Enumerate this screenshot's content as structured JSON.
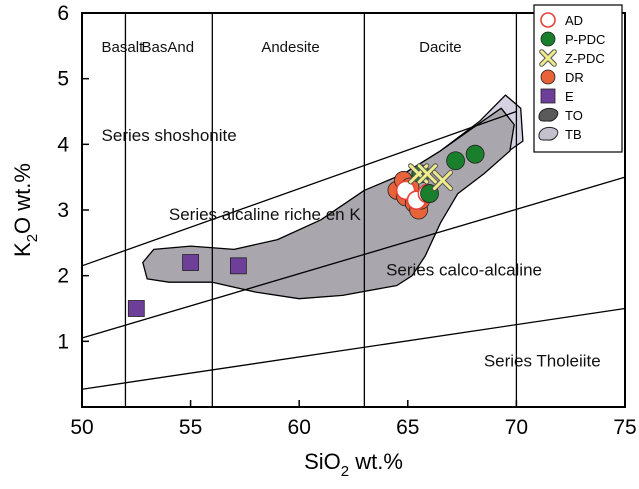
{
  "chart_data": {
    "type": "scatter",
    "xlabel": {
      "main": "SiO",
      "sub": "2",
      "tail": " wt.%"
    },
    "ylabel": {
      "main": "K",
      "sub": "2",
      "tail": "O wt.%"
    },
    "xlim": [
      50,
      75
    ],
    "ylim": [
      0,
      6
    ],
    "xticks": [
      50,
      55,
      60,
      65,
      70,
      75
    ],
    "yticks": [
      1,
      2,
      3,
      4,
      5,
      6
    ],
    "grid": false,
    "legend_position": "top-right",
    "vertical_boundaries": [
      52,
      56,
      63,
      70
    ],
    "rock_type_labels": [
      {
        "text": "Basalt",
        "x": 50.9
      },
      {
        "text": "BasAnd",
        "x": 53.95
      },
      {
        "text": "Andesite",
        "x": 59.6
      },
      {
        "text": "Dacite",
        "x": 66.5
      }
    ],
    "series_boundaries": [
      {
        "name": "upper",
        "points": [
          [
            50,
            2.15
          ],
          [
            70,
            4.5
          ]
        ]
      },
      {
        "name": "middle",
        "points": [
          [
            50,
            1.05
          ],
          [
            75,
            3.5
          ]
        ]
      },
      {
        "name": "lower",
        "points": [
          [
            50,
            0.27
          ],
          [
            75,
            1.5
          ]
        ]
      }
    ],
    "field_labels": [
      {
        "text": "Series shoshonite",
        "x": 50.9,
        "y": 4.05,
        "size": 17
      },
      {
        "text": "Series alcaline riche en K",
        "x": 54.0,
        "y": 2.85,
        "size": 17
      },
      {
        "text": "Series calco-alcaline",
        "x": 64.0,
        "y": 2.0,
        "size": 17
      },
      {
        "text": "Series Tholeiite",
        "x": 68.5,
        "y": 0.62,
        "size": 17
      }
    ],
    "regions": [
      {
        "name": "TB",
        "fill": "#d7d2e2",
        "points": [
          [
            63.2,
            3.1
          ],
          [
            64.8,
            3.55
          ],
          [
            66.5,
            3.9
          ],
          [
            68.3,
            4.35
          ],
          [
            69.5,
            4.75
          ],
          [
            70.2,
            4.55
          ],
          [
            70.3,
            4.05
          ],
          [
            69.0,
            3.75
          ],
          [
            67.5,
            3.35
          ],
          [
            65.8,
            3.05
          ],
          [
            64.2,
            2.75
          ],
          [
            63.2,
            2.8
          ]
        ]
      },
      {
        "name": "TO",
        "fill": "#a9a6ad",
        "points": [
          [
            52.8,
            2.2
          ],
          [
            53.3,
            2.4
          ],
          [
            55.0,
            2.45
          ],
          [
            57.0,
            2.4
          ],
          [
            59.0,
            2.55
          ],
          [
            61.0,
            2.85
          ],
          [
            63.0,
            3.3
          ],
          [
            64.8,
            3.55
          ],
          [
            66.5,
            3.9
          ],
          [
            68.0,
            4.25
          ],
          [
            69.3,
            4.55
          ],
          [
            69.9,
            4.3
          ],
          [
            69.7,
            3.9
          ],
          [
            68.5,
            3.55
          ],
          [
            67.3,
            3.25
          ],
          [
            66.5,
            2.8
          ],
          [
            65.8,
            2.3
          ],
          [
            65.2,
            2.0
          ],
          [
            64.5,
            1.85
          ],
          [
            62.0,
            1.7
          ],
          [
            60.0,
            1.65
          ],
          [
            58.0,
            1.75
          ],
          [
            56.0,
            1.9
          ],
          [
            54.0,
            1.9
          ],
          [
            53.0,
            1.95
          ]
        ]
      }
    ],
    "series": [
      {
        "name": "AD",
        "marker": "open-circle",
        "color": "#e8413a",
        "points": [
          [
            64.9,
            3.3
          ],
          [
            65.4,
            3.15
          ],
          [
            65.9,
            3.25
          ]
        ]
      },
      {
        "name": "P-PDC",
        "marker": "circle",
        "color": "#1a7f2c",
        "points": [
          [
            65.6,
            3.55
          ],
          [
            66.0,
            3.25
          ],
          [
            67.2,
            3.75
          ],
          [
            68.1,
            3.85
          ]
        ]
      },
      {
        "name": "Z-PDC",
        "marker": "x",
        "color": "#f0ec8c",
        "points": [
          [
            65.5,
            3.55
          ],
          [
            65.9,
            3.55
          ],
          [
            66.6,
            3.45
          ]
        ]
      },
      {
        "name": "DR",
        "marker": "circle",
        "color": "#e8623a",
        "points": [
          [
            64.5,
            3.3
          ],
          [
            64.8,
            3.45
          ],
          [
            64.9,
            3.2
          ],
          [
            65.1,
            3.35
          ],
          [
            65.3,
            3.1
          ],
          [
            65.5,
            3.0
          ],
          [
            65.6,
            3.15
          ]
        ]
      },
      {
        "name": "E",
        "marker": "square",
        "color": "#6e3f98",
        "points": [
          [
            52.5,
            1.5
          ],
          [
            55.0,
            2.2
          ],
          [
            57.2,
            2.15
          ]
        ]
      }
    ],
    "legend": [
      {
        "name": "AD",
        "marker": "open-circle",
        "color": "#e8413a"
      },
      {
        "name": "P-PDC",
        "marker": "circle",
        "color": "#1a7f2c"
      },
      {
        "name": "Z-PDC",
        "marker": "x",
        "color": "#f0ec8c"
      },
      {
        "name": "DR",
        "marker": "circle",
        "color": "#e8623a"
      },
      {
        "name": "E",
        "marker": "square",
        "color": "#6e3f98"
      },
      {
        "name": "TO",
        "marker": "blob",
        "color": "#5a5a5a"
      },
      {
        "name": "TB",
        "marker": "blob",
        "color": "#c4c0cc"
      }
    ]
  }
}
